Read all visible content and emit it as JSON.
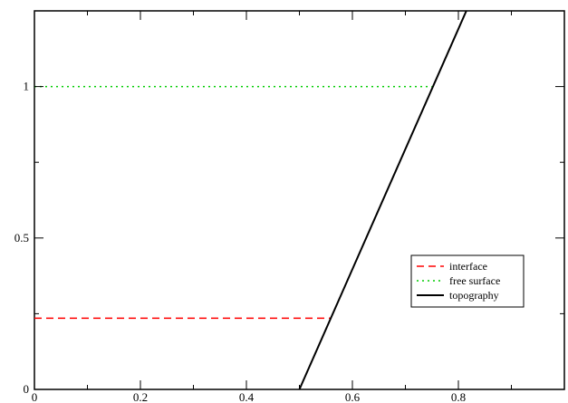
{
  "chart_data": {
    "type": "line",
    "title": "",
    "xlabel": "",
    "ylabel": "",
    "xlim": [
      0,
      1
    ],
    "ylim": [
      0,
      1.25
    ],
    "grid": false,
    "legend_position": "lower-right",
    "x_ticks": [
      0,
      0.2,
      0.4,
      0.6,
      0.8
    ],
    "x_tick_labels": [
      "0",
      "0.2",
      "0.4",
      "0.6",
      "0.8"
    ],
    "y_ticks": [
      0,
      0.5,
      1
    ],
    "y_tick_labels": [
      "0",
      "0.5",
      "1"
    ],
    "series": [
      {
        "name": "interface",
        "color": "#ff0000",
        "style": "dashed",
        "points": [
          [
            0,
            0.235
          ],
          [
            0.56,
            0.235
          ]
        ]
      },
      {
        "name": "free surface",
        "color": "#00cc00",
        "style": "dotted",
        "points": [
          [
            0,
            1.0
          ],
          [
            0.75,
            1.0
          ]
        ]
      },
      {
        "name": "topography",
        "color": "#000000",
        "style": "solid",
        "points": [
          [
            0.5,
            0
          ],
          [
            0.815,
            1.25
          ]
        ]
      }
    ]
  }
}
